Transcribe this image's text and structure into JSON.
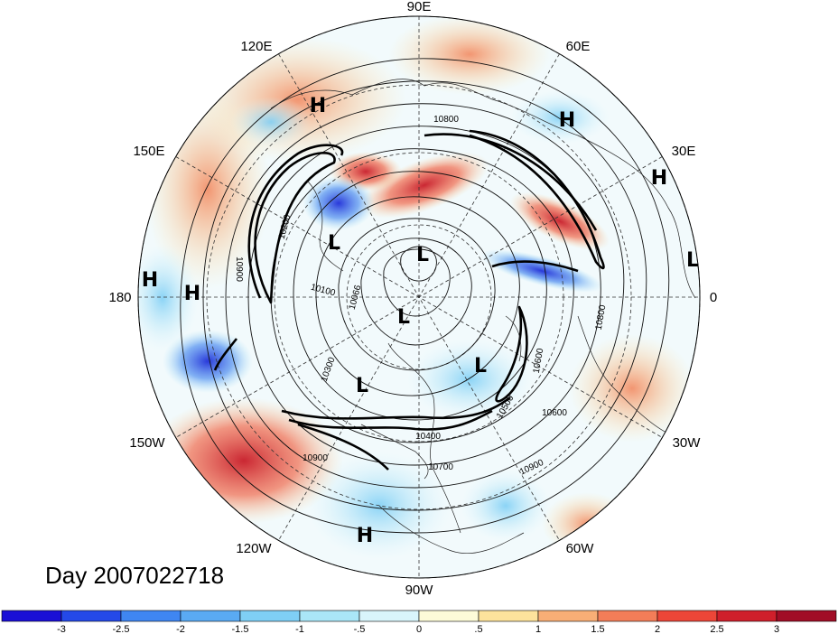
{
  "map": {
    "projection": "north polar stereographic",
    "longitude_labels": [
      "90E",
      "120E",
      "60E",
      "150E",
      "30E",
      "180",
      "0",
      "150W",
      "30W",
      "120W",
      "60W",
      "90W"
    ],
    "pressure_centers": [
      "H",
      "H",
      "H",
      "H",
      "H",
      "H",
      "L",
      "L",
      "L",
      "L",
      "L",
      "L"
    ],
    "contour_labels": [
      "10800",
      "10900",
      "10200",
      "10100",
      "10066",
      "10300",
      "10800",
      "10600",
      "10500",
      "10400",
      "10700",
      "10900",
      "10900",
      "10600"
    ],
    "day_label": "Day 2007022718"
  },
  "colorbar": {
    "labels": [
      "-3",
      "-2.5",
      "-2",
      "-1.5",
      "-1",
      "-.5",
      "0",
      ".5",
      "1",
      "1.5",
      "2",
      "2.5",
      "3"
    ],
    "colors": [
      "#1a0fd6",
      "#2449e8",
      "#3f86f2",
      "#5aaaf3",
      "#7fcff5",
      "#aae6f7",
      "#d9f5fb",
      "#fdfbd8",
      "#fde39c",
      "#f8ae76",
      "#f37d58",
      "#ec4638",
      "#cf1f2b",
      "#a10d26"
    ]
  }
}
